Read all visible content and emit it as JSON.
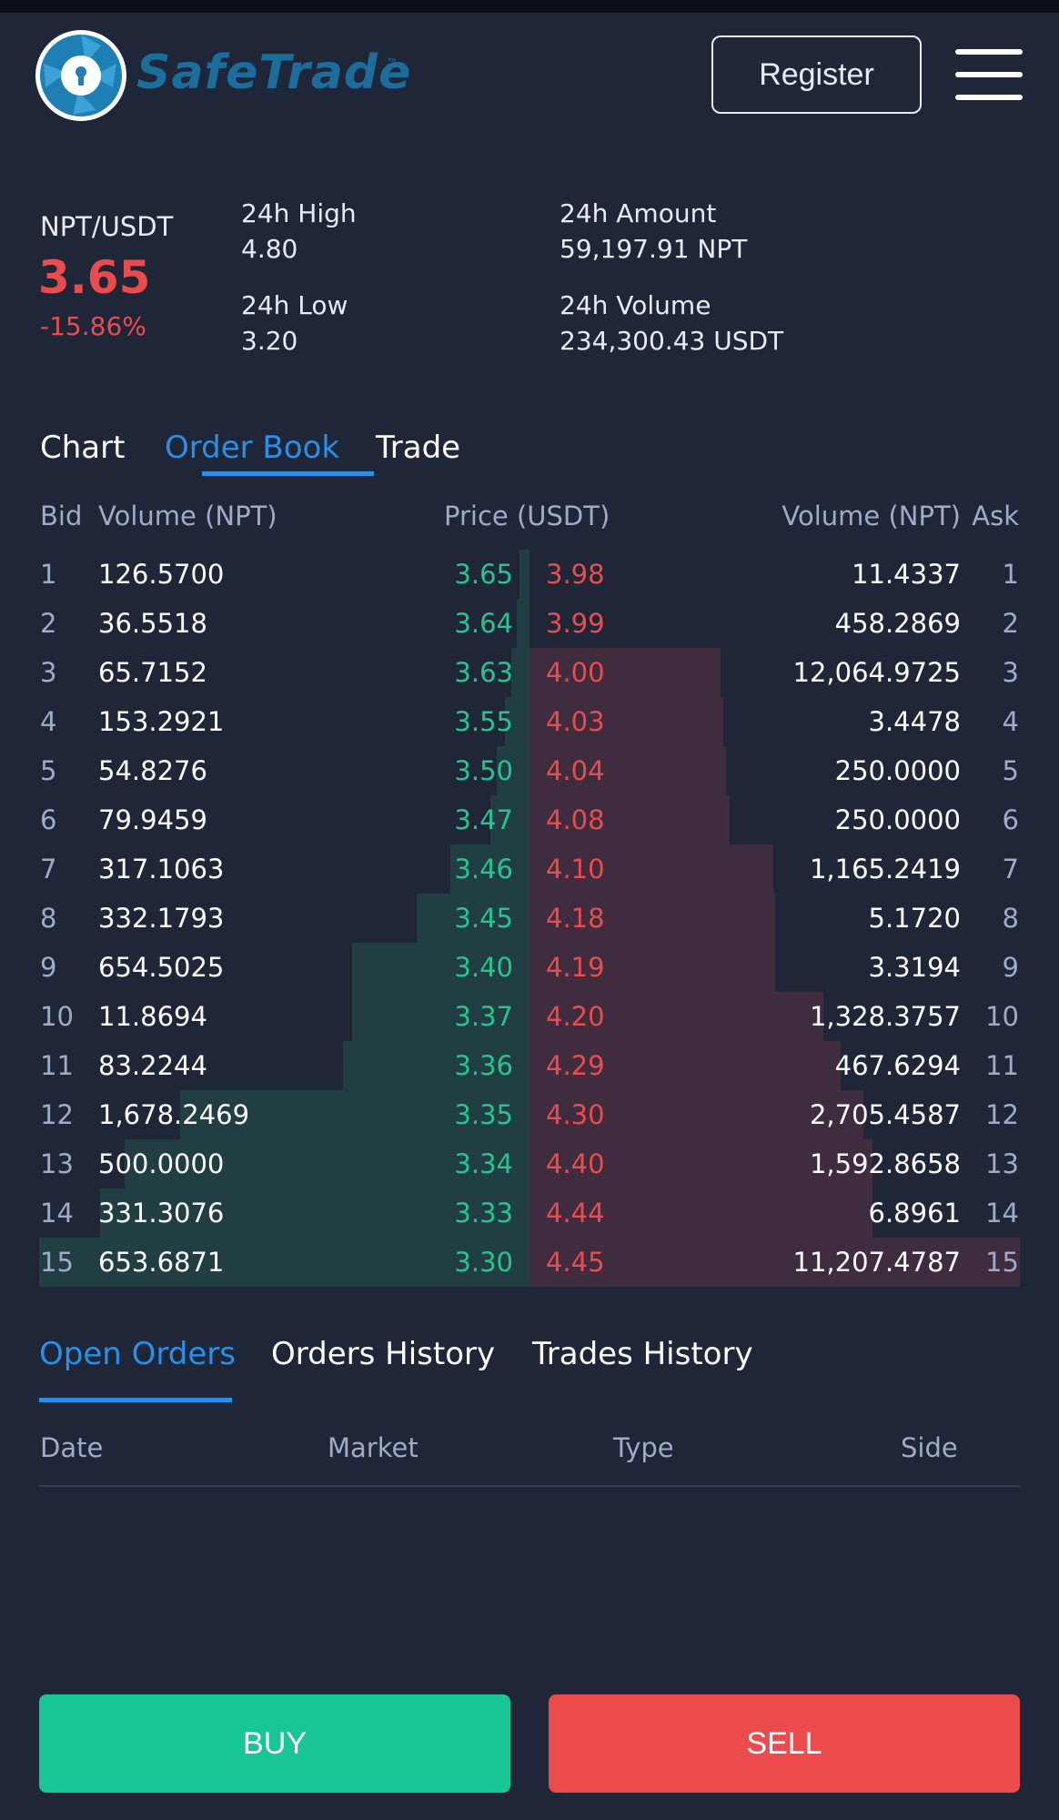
{
  "header": {
    "brand": "SafeTrade",
    "brand_tm": "™",
    "register_label": "Register",
    "logo_icon": "lock-aperture-logo",
    "menu_icon": "hamburger-menu-icon"
  },
  "ticker": {
    "pair": "NPT/USDT",
    "last_price": "3.65",
    "change": "-15.86%",
    "high_label": "24h High",
    "high_value": "4.80",
    "low_label": "24h Low",
    "low_value": "3.20",
    "amount_label": "24h Amount",
    "amount_value": "59,197.91 NPT",
    "volume_label": "24h Volume",
    "volume_value": "234,300.43 USDT"
  },
  "tabs": [
    {
      "label": "Chart",
      "active": false
    },
    {
      "label": "Order Book",
      "active": true
    },
    {
      "label": "Trade",
      "active": false
    }
  ],
  "order_book": {
    "headers": {
      "bid": "Bid",
      "bid_volume": "Volume (NPT)",
      "price": "Price (USDT)",
      "ask_volume": "Volume (NPT)",
      "ask": "Ask"
    },
    "rows": [
      {
        "idx": "1",
        "bid_volume": "126.5700",
        "bid_price": "3.65",
        "ask_price": "3.98",
        "ask_volume": "11.4337",
        "bid_depth": 0.02,
        "ask_depth": 0.0
      },
      {
        "idx": "2",
        "bid_volume": "36.5518",
        "bid_price": "3.64",
        "ask_price": "3.99",
        "ask_volume": "458.2869",
        "bid_depth": 0.026,
        "ask_depth": 0.0
      },
      {
        "idx": "3",
        "bid_volume": "65.7152",
        "bid_price": "3.63",
        "ask_price": "4.00",
        "ask_volume": "12,064.9725",
        "bid_depth": 0.038,
        "ask_depth": 0.39
      },
      {
        "idx": "4",
        "bid_volume": "153.2921",
        "bid_price": "3.55",
        "ask_price": "4.03",
        "ask_volume": "3.4478",
        "bid_depth": 0.05,
        "ask_depth": 0.395
      },
      {
        "idx": "5",
        "bid_volume": "54.8276",
        "bid_price": "3.50",
        "ask_price": "4.04",
        "ask_volume": "250.0000",
        "bid_depth": 0.066,
        "ask_depth": 0.4
      },
      {
        "idx": "6",
        "bid_volume": "79.9459",
        "bid_price": "3.47",
        "ask_price": "4.08",
        "ask_volume": "250.0000",
        "bid_depth": 0.08,
        "ask_depth": 0.408
      },
      {
        "idx": "7",
        "bid_volume": "317.1063",
        "bid_price": "3.46",
        "ask_price": "4.10",
        "ask_volume": "1,165.2419",
        "bid_depth": 0.162,
        "ask_depth": 0.497
      },
      {
        "idx": "8",
        "bid_volume": "332.1793",
        "bid_price": "3.45",
        "ask_price": "4.18",
        "ask_volume": "5.1720",
        "bid_depth": 0.23,
        "ask_depth": 0.5
      },
      {
        "idx": "9",
        "bid_volume": "654.5025",
        "bid_price": "3.40",
        "ask_price": "4.19",
        "ask_volume": "3.3194",
        "bid_depth": 0.361,
        "ask_depth": 0.5
      },
      {
        "idx": "10",
        "bid_volume": "11.8694",
        "bid_price": "3.37",
        "ask_price": "4.20",
        "ask_volume": "1,328.3757",
        "bid_depth": 0.362,
        "ask_depth": 0.6
      },
      {
        "idx": "11",
        "bid_volume": "83.2244",
        "bid_price": "3.36",
        "ask_price": "4.29",
        "ask_volume": "467.6294",
        "bid_depth": 0.38,
        "ask_depth": 0.635
      },
      {
        "idx": "12",
        "bid_volume": "1,678.2469",
        "bid_price": "3.35",
        "ask_price": "4.30",
        "ask_volume": "2,705.4587",
        "bid_depth": 0.713,
        "ask_depth": 0.68
      },
      {
        "idx": "13",
        "bid_volume": "500.0000",
        "bid_price": "3.34",
        "ask_price": "4.40",
        "ask_volume": "1,592.8658",
        "bid_depth": 0.825,
        "ask_depth": 0.7
      },
      {
        "idx": "14",
        "bid_volume": "331.3076",
        "bid_price": "3.33",
        "ask_price": "4.44",
        "ask_volume": "6.8961",
        "bid_depth": 0.875,
        "ask_depth": 0.7
      },
      {
        "idx": "15",
        "bid_volume": "653.6871",
        "bid_price": "3.30",
        "ask_price": "4.45",
        "ask_volume": "11,207.4787",
        "bid_depth": 1.0,
        "ask_depth": 1.0
      }
    ]
  },
  "orders": {
    "tabs": [
      {
        "label": "Open Orders",
        "active": true
      },
      {
        "label": "Orders History",
        "active": false
      },
      {
        "label": "Trades History",
        "active": false
      }
    ],
    "columns": [
      "Date",
      "Market",
      "Type",
      "Side"
    ]
  },
  "actions": {
    "buy_label": "BUY",
    "sell_label": "SELL"
  },
  "colors": {
    "background": "#1f2638",
    "accent": "#2a8fe6",
    "buy": "#17c595",
    "sell": "#ec4b4e"
  }
}
